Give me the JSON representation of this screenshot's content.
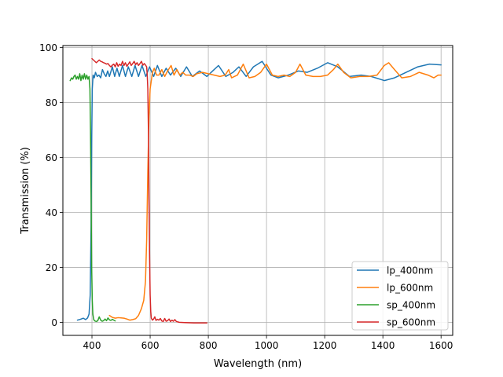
{
  "chart_data": {
    "type": "line",
    "xlabel": "Wavelength (nm)",
    "ylabel": "Transmission (%)",
    "xlim": [
      300,
      1640
    ],
    "ylim": [
      -4.75,
      100.75
    ],
    "x_ticks": [
      400,
      600,
      800,
      1000,
      1200,
      1400,
      1600
    ],
    "y_ticks": [
      0,
      20,
      40,
      60,
      80,
      100
    ],
    "grid": true,
    "legend_position": "lower-right",
    "series": [
      {
        "name": "lp_400nm",
        "color": "#1f77b4",
        "points": [
          [
            350,
            0.8
          ],
          [
            360,
            1.1
          ],
          [
            370,
            1.5
          ],
          [
            378,
            1.0
          ],
          [
            385,
            1.6
          ],
          [
            390,
            3
          ],
          [
            394,
            10
          ],
          [
            397,
            35
          ],
          [
            399,
            65
          ],
          [
            401,
            85
          ],
          [
            404,
            90
          ],
          [
            408,
            89
          ],
          [
            412,
            91
          ],
          [
            418,
            89.5
          ],
          [
            424,
            90
          ],
          [
            430,
            89
          ],
          [
            436,
            92
          ],
          [
            442,
            90.5
          ],
          [
            448,
            89.5
          ],
          [
            454,
            91.5
          ],
          [
            460,
            89.5
          ],
          [
            470,
            93
          ],
          [
            478,
            89.5
          ],
          [
            486,
            92.5
          ],
          [
            494,
            89.5
          ],
          [
            505,
            93.5
          ],
          [
            515,
            89.5
          ],
          [
            525,
            93
          ],
          [
            537,
            89.5
          ],
          [
            548,
            93.5
          ],
          [
            560,
            89.5
          ],
          [
            572,
            93.5
          ],
          [
            585,
            89.5
          ],
          [
            598,
            93
          ],
          [
            612,
            89.5
          ],
          [
            625,
            93.5
          ],
          [
            640,
            89.5
          ],
          [
            655,
            92.5
          ],
          [
            670,
            90
          ],
          [
            688,
            92.5
          ],
          [
            705,
            89.5
          ],
          [
            725,
            93
          ],
          [
            745,
            89.5
          ],
          [
            770,
            91.5
          ],
          [
            795,
            89.5
          ],
          [
            815,
            91.5
          ],
          [
            835,
            93.5
          ],
          [
            860,
            89.5
          ],
          [
            885,
            91
          ],
          [
            905,
            93
          ],
          [
            930,
            89.5
          ],
          [
            955,
            93
          ],
          [
            985,
            95
          ],
          [
            1015,
            90
          ],
          [
            1040,
            89
          ],
          [
            1075,
            90
          ],
          [
            1110,
            91.5
          ],
          [
            1140,
            91
          ],
          [
            1175,
            92.5
          ],
          [
            1210,
            94.5
          ],
          [
            1245,
            93
          ],
          [
            1285,
            89.5
          ],
          [
            1325,
            90
          ],
          [
            1360,
            89.5
          ],
          [
            1405,
            88
          ],
          [
            1440,
            89
          ],
          [
            1480,
            91
          ],
          [
            1520,
            93
          ],
          [
            1560,
            94
          ],
          [
            1600,
            93.7
          ]
        ]
      },
      {
        "name": "lp_600nm",
        "color": "#ff7f0e",
        "points": [
          [
            460,
            2.5
          ],
          [
            470,
            1.8
          ],
          [
            480,
            1.5
          ],
          [
            490,
            1.7
          ],
          [
            500,
            1.6
          ],
          [
            510,
            1.5
          ],
          [
            520,
            1.2
          ],
          [
            530,
            0.8
          ],
          [
            540,
            1.0
          ],
          [
            550,
            1.3
          ],
          [
            560,
            2.5
          ],
          [
            570,
            5
          ],
          [
            578,
            8
          ],
          [
            584,
            15
          ],
          [
            588,
            30
          ],
          [
            592,
            55
          ],
          [
            596,
            75
          ],
          [
            600,
            85
          ],
          [
            604,
            88
          ],
          [
            608,
            91
          ],
          [
            614,
            92.5
          ],
          [
            622,
            90
          ],
          [
            630,
            90
          ],
          [
            640,
            92
          ],
          [
            650,
            89.5
          ],
          [
            660,
            91.5
          ],
          [
            672,
            93.5
          ],
          [
            682,
            90
          ],
          [
            692,
            92
          ],
          [
            702,
            90
          ],
          [
            712,
            91
          ],
          [
            722,
            90
          ],
          [
            735,
            90
          ],
          [
            748,
            89.5
          ],
          [
            760,
            90.5
          ],
          [
            780,
            91
          ],
          [
            800,
            90.5
          ],
          [
            820,
            90
          ],
          [
            840,
            89.5
          ],
          [
            858,
            90
          ],
          [
            870,
            92
          ],
          [
            880,
            89
          ],
          [
            900,
            90
          ],
          [
            920,
            94
          ],
          [
            940,
            89
          ],
          [
            960,
            89.5
          ],
          [
            980,
            91
          ],
          [
            1000,
            94
          ],
          [
            1020,
            90
          ],
          [
            1040,
            89.5
          ],
          [
            1060,
            90
          ],
          [
            1080,
            89.5
          ],
          [
            1100,
            91
          ],
          [
            1115,
            94
          ],
          [
            1135,
            90
          ],
          [
            1160,
            89.5
          ],
          [
            1185,
            89.5
          ],
          [
            1210,
            90
          ],
          [
            1230,
            92
          ],
          [
            1245,
            94
          ],
          [
            1265,
            91
          ],
          [
            1290,
            89
          ],
          [
            1320,
            89.5
          ],
          [
            1350,
            89.5
          ],
          [
            1380,
            90
          ],
          [
            1405,
            93.5
          ],
          [
            1420,
            94.5
          ],
          [
            1440,
            92
          ],
          [
            1465,
            89
          ],
          [
            1495,
            89.5
          ],
          [
            1525,
            91
          ],
          [
            1555,
            90
          ],
          [
            1575,
            89
          ],
          [
            1590,
            90
          ],
          [
            1600,
            90
          ]
        ]
      },
      {
        "name": "sp_400nm",
        "color": "#2ca02c",
        "points": [
          [
            325,
            88
          ],
          [
            330,
            89
          ],
          [
            334,
            88.5
          ],
          [
            338,
            89.5
          ],
          [
            342,
            90
          ],
          [
            346,
            88.5
          ],
          [
            350,
            89.5
          ],
          [
            354,
            88.5
          ],
          [
            358,
            90.5
          ],
          [
            362,
            88
          ],
          [
            366,
            90
          ],
          [
            370,
            88.5
          ],
          [
            374,
            90.5
          ],
          [
            378,
            88.5
          ],
          [
            382,
            90
          ],
          [
            386,
            88.5
          ],
          [
            390,
            89.5
          ],
          [
            393,
            85
          ],
          [
            395,
            70
          ],
          [
            397,
            45
          ],
          [
            399,
            20
          ],
          [
            401,
            8
          ],
          [
            403,
            3
          ],
          [
            406,
            1
          ],
          [
            410,
            0.5
          ],
          [
            415,
            0.3
          ],
          [
            420,
            0.6
          ],
          [
            425,
            2
          ],
          [
            430,
            0.8
          ],
          [
            435,
            0.4
          ],
          [
            440,
            0.6
          ],
          [
            445,
            1.2
          ],
          [
            450,
            0.6
          ],
          [
            455,
            1.6
          ],
          [
            460,
            0.9
          ],
          [
            465,
            0.7
          ],
          [
            470,
            1.1
          ],
          [
            475,
            0.8
          ],
          [
            480,
            0.5
          ]
        ]
      },
      {
        "name": "sp_600nm",
        "color": "#d62728",
        "points": [
          [
            400,
            96
          ],
          [
            405,
            95.5
          ],
          [
            410,
            95
          ],
          [
            415,
            94.5
          ],
          [
            420,
            95
          ],
          [
            425,
            95.5
          ],
          [
            430,
            95
          ],
          [
            435,
            94.8
          ],
          [
            440,
            94.5
          ],
          [
            445,
            94.3
          ],
          [
            450,
            94
          ],
          [
            455,
            94.2
          ],
          [
            460,
            93.5
          ],
          [
            465,
            93
          ],
          [
            470,
            93.6
          ],
          [
            475,
            94
          ],
          [
            480,
            93
          ],
          [
            485,
            94.5
          ],
          [
            490,
            93.2
          ],
          [
            495,
            94
          ],
          [
            500,
            93.5
          ],
          [
            505,
            95
          ],
          [
            510,
            93.5
          ],
          [
            515,
            94.5
          ],
          [
            520,
            93.2
          ],
          [
            525,
            94
          ],
          [
            530,
            94.8
          ],
          [
            535,
            93.5
          ],
          [
            540,
            94.2
          ],
          [
            545,
            95
          ],
          [
            550,
            93.8
          ],
          [
            555,
            94.5
          ],
          [
            560,
            93.5
          ],
          [
            565,
            94.2
          ],
          [
            570,
            95
          ],
          [
            575,
            93.6
          ],
          [
            580,
            94.2
          ],
          [
            585,
            93.5
          ],
          [
            588,
            93
          ],
          [
            590,
            90
          ],
          [
            592,
            85
          ],
          [
            594,
            70
          ],
          [
            596,
            45
          ],
          [
            598,
            25
          ],
          [
            600,
            10
          ],
          [
            602,
            4
          ],
          [
            604,
            1.5
          ],
          [
            608,
            0.8
          ],
          [
            612,
            1.2
          ],
          [
            616,
            2
          ],
          [
            620,
            0.7
          ],
          [
            625,
            1.1
          ],
          [
            630,
            0.8
          ],
          [
            635,
            1.4
          ],
          [
            640,
            0.5
          ],
          [
            645,
            0.3
          ],
          [
            650,
            1.4
          ],
          [
            655,
            0.4
          ],
          [
            660,
            0.6
          ],
          [
            665,
            1.2
          ],
          [
            670,
            0.3
          ],
          [
            675,
            0.8
          ],
          [
            680,
            0.4
          ],
          [
            685,
            1
          ],
          [
            690,
            0.3
          ],
          [
            700,
            0
          ],
          [
            720,
            -0.1
          ],
          [
            750,
            -0.2
          ],
          [
            780,
            -0.2
          ],
          [
            795,
            -0.2
          ]
        ]
      }
    ]
  }
}
